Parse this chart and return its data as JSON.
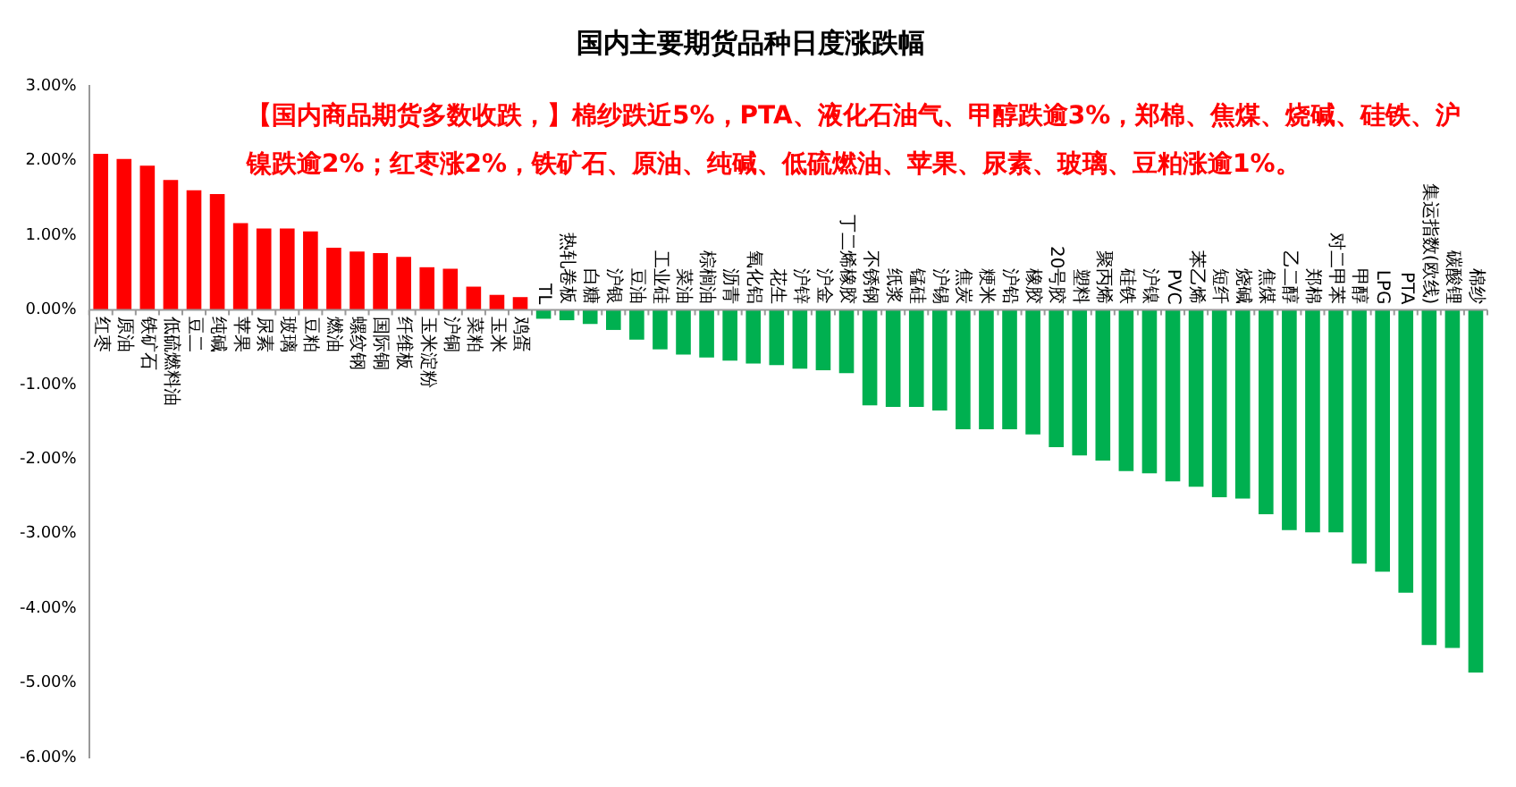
{
  "chart_data": {
    "type": "bar",
    "title": "国内主要期货品种日度涨跌幅",
    "annotations": [
      "【国内商品期货多数收跌，】棉纱跌近5%，PTA、液化石油气、甲醇跌逾3%，郑棉、焦煤、烧碱、硅铁、沪镍跌逾2%；红枣涨2%，铁矿石、原油、纯碱、低硫燃油、苹果、尿素、玻璃、豆粕涨逾1%。"
    ],
    "categories": [
      "红枣",
      "原油",
      "铁矿石",
      "低硫燃料油",
      "豆二",
      "纯碱",
      "苹果",
      "尿素",
      "玻璃",
      "豆粕",
      "燃油",
      "螺纹钢",
      "国际铜",
      "纤维板",
      "玉米淀粉",
      "沪铜",
      "菜粕",
      "玉米",
      "鸡蛋",
      "TL",
      "热轧卷板",
      "白糖",
      "沪银",
      "豆油",
      "工业硅",
      "菜油",
      "棕榈油",
      "沥青",
      "氧化铝",
      "花生",
      "沪锌",
      "沪金",
      "丁二烯橡胶",
      "不锈钢",
      "纸浆",
      "锰硅",
      "沪锡",
      "焦炭",
      "粳米",
      "沪铅",
      "橡胶",
      "20号胶",
      "塑料",
      "聚丙烯",
      "硅铁",
      "沪镍",
      "PVC",
      "苯乙烯",
      "短纤",
      "烧碱",
      "焦煤",
      "乙二醇",
      "郑棉",
      "对二甲苯",
      "甲醇",
      "LPG",
      "PTA",
      "集运指数(欧线)",
      "碳酸锂",
      "棉纱"
    ],
    "values": [
      2.09,
      2.02,
      1.93,
      1.74,
      1.6,
      1.55,
      1.16,
      1.09,
      1.09,
      1.05,
      0.83,
      0.78,
      0.76,
      0.71,
      0.57,
      0.55,
      0.31,
      0.2,
      0.17,
      -0.12,
      -0.14,
      -0.19,
      -0.27,
      -0.4,
      -0.53,
      -0.6,
      -0.64,
      -0.68,
      -0.72,
      -0.74,
      -0.79,
      -0.81,
      -0.85,
      -1.28,
      -1.3,
      -1.3,
      -1.35,
      -1.6,
      -1.6,
      -1.6,
      -1.67,
      -1.84,
      -1.95,
      -2.02,
      -2.16,
      -2.19,
      -2.3,
      -2.37,
      -2.51,
      -2.53,
      -2.74,
      -2.95,
      -2.98,
      -2.98,
      -3.4,
      -3.51,
      -3.79,
      -4.49,
      -4.53,
      -4.86
    ],
    "colors": [
      "#ff0000",
      "#ff0000",
      "#ff0000",
      "#ff0000",
      "#ff0000",
      "#ff0000",
      "#ff0000",
      "#ff0000",
      "#ff0000",
      "#ff0000",
      "#ff0000",
      "#ff0000",
      "#ff0000",
      "#ff0000",
      "#ff0000",
      "#ff0000",
      "#ff0000",
      "#ff0000",
      "#ff0000",
      "#00b050",
      "#00b050",
      "#00b050",
      "#00b050",
      "#00b050",
      "#00b050",
      "#00b050",
      "#00b050",
      "#00b050",
      "#00b050",
      "#00b050",
      "#00b050",
      "#00b050",
      "#00b050",
      "#00b050",
      "#00b050",
      "#00b050",
      "#00b050",
      "#00b050",
      "#00b050",
      "#00b050",
      "#00b050",
      "#00b050",
      "#00b050",
      "#00b050",
      "#00b050",
      "#00b050",
      "#00b050",
      "#00b050",
      "#00b050",
      "#00b050",
      "#00b050",
      "#00b050",
      "#00b050",
      "#00b050",
      "#00b050",
      "#00b050",
      "#00b050",
      "#00b050",
      "#00b050",
      "#00b050"
    ],
    "ylim": [
      -6,
      3
    ],
    "yticks": [
      {
        "value": 3,
        "label": "3.00%"
      },
      {
        "value": 2,
        "label": "2.00%"
      },
      {
        "value": 1,
        "label": "1.00%"
      },
      {
        "value": 0,
        "label": "0.00%"
      },
      {
        "value": -1,
        "label": "-1.00%"
      },
      {
        "value": -2,
        "label": "-2.00%"
      },
      {
        "value": -3,
        "label": "-3.00%"
      },
      {
        "value": -4,
        "label": "-4.00%"
      },
      {
        "value": -5,
        "label": "-5.00%"
      },
      {
        "value": -6,
        "label": "-6.00%"
      }
    ],
    "grid": false,
    "legend": false
  }
}
